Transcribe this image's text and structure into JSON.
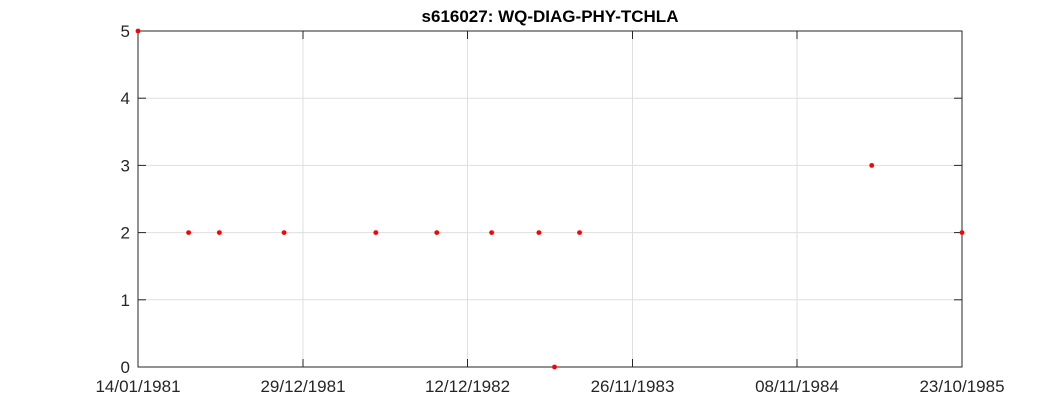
{
  "chart_data": {
    "type": "scatter",
    "title": "s616027: WQ-DIAG-PHY-TCHLA",
    "xlabel": "",
    "ylabel": "",
    "x_axis": "date",
    "xlim": [
      "1981-01-14",
      "1985-10-23"
    ],
    "ylim": [
      0,
      5
    ],
    "x_ticks": [
      "1981-01-14",
      "1981-12-29",
      "1982-12-12",
      "1983-11-26",
      "1984-11-08",
      "1985-10-23"
    ],
    "x_tick_labels": [
      "14/01/1981",
      "29/12/1981",
      "12/12/1982",
      "26/11/1983",
      "08/11/1984",
      "23/10/1985"
    ],
    "y_ticks": [
      0,
      1,
      2,
      3,
      4,
      5
    ],
    "y_tick_labels": [
      "0",
      "1",
      "2",
      "3",
      "4",
      "5"
    ],
    "grid": true,
    "marker_color": "#ff0000",
    "points": [
      {
        "x": "1981-01-14",
        "y": 5
      },
      {
        "x": "1981-05-01",
        "y": 2
      },
      {
        "x": "1981-07-05",
        "y": 2
      },
      {
        "x": "1981-11-19",
        "y": 2
      },
      {
        "x": "1982-06-01",
        "y": 2
      },
      {
        "x": "1982-10-08",
        "y": 2
      },
      {
        "x": "1983-02-01",
        "y": 2
      },
      {
        "x": "1983-05-12",
        "y": 2
      },
      {
        "x": "1983-06-14",
        "y": 0
      },
      {
        "x": "1983-08-06",
        "y": 2
      },
      {
        "x": "1985-04-15",
        "y": 3
      },
      {
        "x": "1985-10-23",
        "y": 2
      }
    ]
  }
}
